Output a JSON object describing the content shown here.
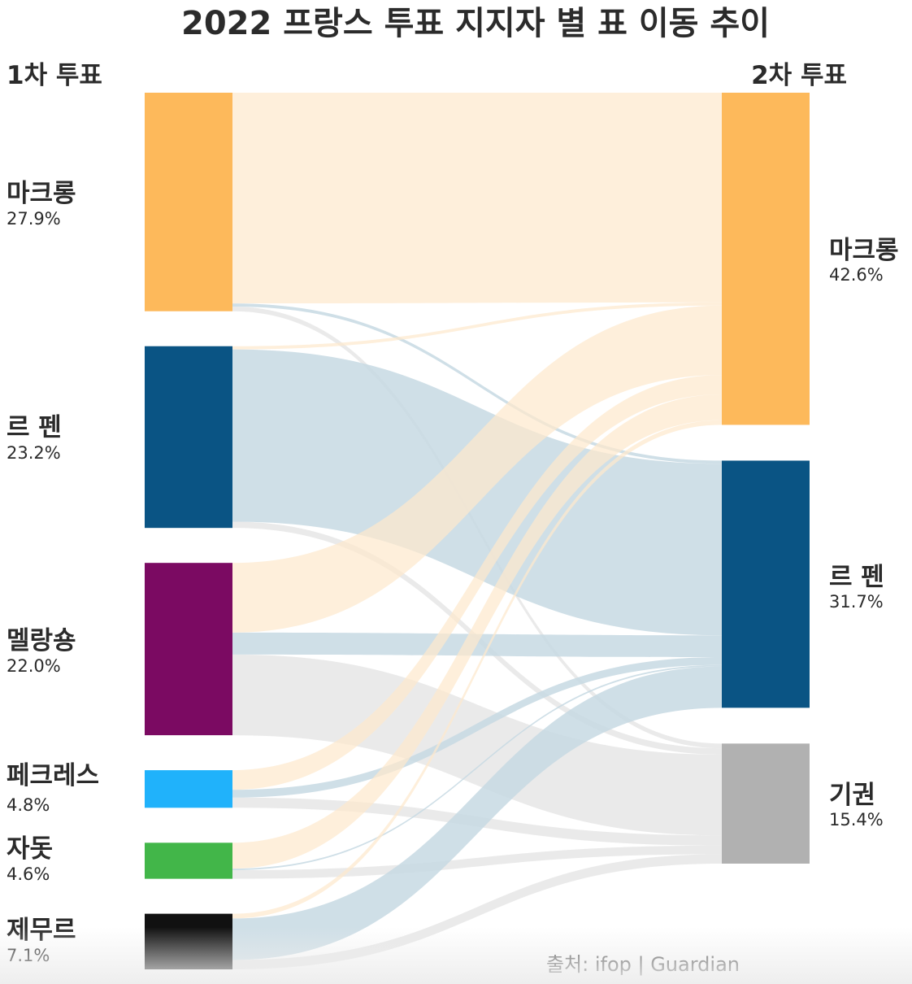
{
  "chart_data": {
    "type": "sankey",
    "title": "2022 프랑스 투표 지지자 별 표 이동 추이",
    "left_header": "1차 투표",
    "right_header": "2차 투표",
    "source": "출처: ifop | Guardian",
    "sources": [
      {
        "id": "macron",
        "name": "마크롱",
        "pct_label": "27.9%",
        "value": 27.9,
        "color": "#FDB95B"
      },
      {
        "id": "lepen",
        "name": "르 펜",
        "pct_label": "23.2%",
        "value": 23.2,
        "color": "#0A5484"
      },
      {
        "id": "melenchon",
        "name": "멜랑숑",
        "pct_label": "22.0%",
        "value": 22.0,
        "color": "#7B0A62"
      },
      {
        "id": "pecresse",
        "name": "페크레스",
        "pct_label": "4.8%",
        "value": 4.8,
        "color": "#20B2FB"
      },
      {
        "id": "jadot",
        "name": "자돗",
        "pct_label": "4.6%",
        "value": 4.6,
        "color": "#42B649"
      },
      {
        "id": "zemmour",
        "name": "제무르",
        "pct_label": "7.1%",
        "value": 7.1,
        "color": "#111111"
      }
    ],
    "targets": [
      {
        "id": "t_macron",
        "name": "마크롱",
        "pct_label": "42.6%",
        "value": 42.6,
        "color": "#FDB95B",
        "link_color": "#FDE9CD"
      },
      {
        "id": "t_lepen",
        "name": "르 펜",
        "pct_label": "31.7%",
        "value": 31.7,
        "color": "#0A5484",
        "link_color": "#C7D9E3"
      },
      {
        "id": "t_abstain",
        "name": "기권",
        "pct_label": "15.4%",
        "value": 15.4,
        "color": "#B1B1B1",
        "link_color": "#E6E6E6"
      }
    ],
    "flows": [
      {
        "source": "macron",
        "target": "t_macron",
        "value": 26.9
      },
      {
        "source": "macron",
        "target": "t_lepen",
        "value": 0.4
      },
      {
        "source": "macron",
        "target": "t_abstain",
        "value": 0.6
      },
      {
        "source": "lepen",
        "target": "t_macron",
        "value": 0.4
      },
      {
        "source": "lepen",
        "target": "t_lepen",
        "value": 22.0
      },
      {
        "source": "lepen",
        "target": "t_abstain",
        "value": 0.8
      },
      {
        "source": "melenchon",
        "target": "t_macron",
        "value": 8.9
      },
      {
        "source": "melenchon",
        "target": "t_lepen",
        "value": 2.8
      },
      {
        "source": "melenchon",
        "target": "t_abstain",
        "value": 10.3
      },
      {
        "source": "pecresse",
        "target": "t_macron",
        "value": 2.5
      },
      {
        "source": "pecresse",
        "target": "t_lepen",
        "value": 1.0
      },
      {
        "source": "pecresse",
        "target": "t_abstain",
        "value": 1.3
      },
      {
        "source": "jadot",
        "target": "t_macron",
        "value": 3.3
      },
      {
        "source": "jadot",
        "target": "t_lepen",
        "value": 0.2
      },
      {
        "source": "jadot",
        "target": "t_abstain",
        "value": 1.1
      },
      {
        "source": "zemmour",
        "target": "t_macron",
        "value": 0.6
      },
      {
        "source": "zemmour",
        "target": "t_lepen",
        "value": 5.3
      },
      {
        "source": "zemmour",
        "target": "t_abstain",
        "value": 1.2
      }
    ]
  }
}
